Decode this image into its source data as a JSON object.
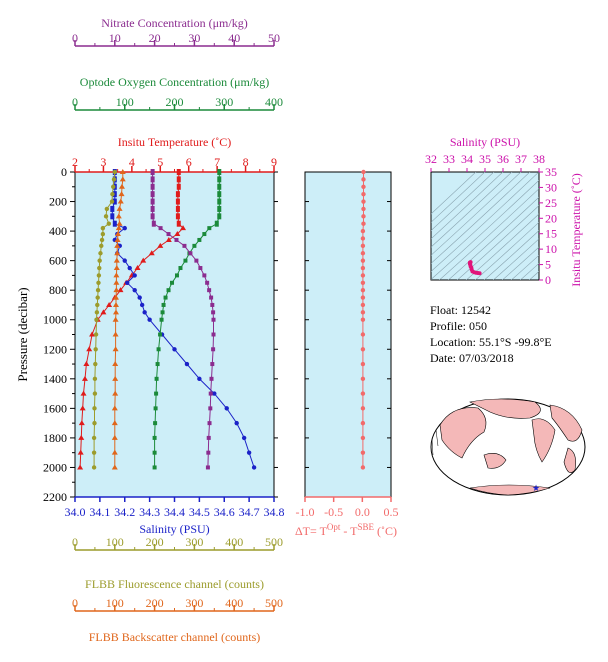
{
  "colors": {
    "nitrate": "#8b2c8f",
    "oxygen": "#1b8a3a",
    "temperature": "#e01b1b",
    "salinity": "#1b22c8",
    "fluorescence": "#9c9c2c",
    "backscatter": "#e0661b",
    "delta_t": "#f26a6a",
    "panel_bg": "#cdeef8",
    "ts_axis": "#cc11aa"
  },
  "info": {
    "float_label": "Float:",
    "float_value": "12542",
    "profile_label": "Profile:",
    "profile_value": "050",
    "location_label": "Location:",
    "location_value": "55.1°S  -99.8°E",
    "date_label": "Date:",
    "date_value": "07/03/2018"
  },
  "chart_data": [
    {
      "type": "line",
      "panel": "profile",
      "ylabel": "Pressure (decibar)",
      "ylim": [
        2200,
        0
      ],
      "y_ticks": [
        "0",
        "200",
        "400",
        "600",
        "800",
        "1000",
        "1200",
        "1400",
        "1600",
        "1800",
        "2000",
        "2200"
      ],
      "axes": {
        "nitrate": {
          "label": "Nitrate Concentration (μm/kg)",
          "ticks": [
            "0",
            "10",
            "20",
            "30",
            "40",
            "50"
          ],
          "range": [
            0,
            50
          ]
        },
        "oxygen": {
          "label": "Optode Oxygen Concentration (μm/kg)",
          "ticks": [
            "0",
            "100",
            "200",
            "300",
            "400"
          ],
          "range": [
            0,
            400
          ]
        },
        "temperature": {
          "label": "Insitu Temperature (˚C)",
          "ticks": [
            "2",
            "3",
            "4",
            "5",
            "6",
            "7",
            "8",
            "9"
          ],
          "range": [
            2,
            9
          ]
        },
        "salinity": {
          "label": "Salinity (PSU)",
          "ticks": [
            "34.0",
            "34.1",
            "34.2",
            "34.3",
            "34.4",
            "34.5",
            "34.6",
            "34.7",
            "34.8"
          ],
          "range": [
            34.0,
            34.8
          ]
        },
        "fluorescence": {
          "label": "FLBB Fluorescence channel (counts)",
          "ticks": [
            "0",
            "100",
            "200",
            "300",
            "400",
            "500"
          ],
          "range": [
            0,
            500
          ]
        },
        "backscatter": {
          "label": "FLBB Backscatter channel (counts)",
          "ticks": [
            "0",
            "100",
            "200",
            "300",
            "400",
            "500"
          ],
          "range": [
            0,
            500
          ]
        }
      },
      "series": [
        {
          "key": "temperature",
          "pressure": [
            0,
            50,
            100,
            150,
            200,
            250,
            300,
            350,
            380,
            420,
            460,
            500,
            550,
            600,
            650,
            700,
            750,
            800,
            850,
            900,
            950,
            1000,
            1100,
            1200,
            1300,
            1400,
            1500,
            1600,
            1700,
            1800,
            1900,
            2000
          ],
          "values": [
            5.65,
            5.65,
            5.65,
            5.62,
            5.62,
            5.62,
            5.62,
            5.65,
            5.8,
            5.6,
            5.3,
            5.0,
            4.7,
            4.4,
            4.2,
            4.0,
            3.8,
            3.6,
            3.4,
            3.2,
            3.0,
            2.8,
            2.6,
            2.5,
            2.4,
            2.35,
            2.3,
            2.27,
            2.24,
            2.22,
            2.2,
            2.18
          ]
        },
        {
          "key": "salinity",
          "pressure": [
            0,
            50,
            100,
            150,
            200,
            250,
            300,
            350,
            380,
            420,
            460,
            500,
            550,
            600,
            650,
            700,
            750,
            800,
            850,
            900,
            950,
            1000,
            1100,
            1200,
            1300,
            1400,
            1500,
            1600,
            1700,
            1800,
            1900,
            2000
          ],
          "values": [
            34.16,
            34.16,
            34.16,
            34.16,
            34.16,
            34.15,
            34.15,
            34.16,
            34.2,
            34.17,
            34.16,
            34.18,
            34.17,
            34.2,
            34.22,
            34.24,
            34.21,
            34.24,
            34.26,
            34.27,
            34.28,
            34.3,
            34.35,
            34.4,
            34.45,
            34.5,
            34.56,
            34.61,
            34.65,
            34.68,
            34.7,
            34.72
          ]
        },
        {
          "key": "oxygen",
          "pressure": [
            0,
            50,
            100,
            150,
            200,
            250,
            300,
            350,
            380,
            420,
            460,
            500,
            550,
            600,
            650,
            700,
            750,
            800,
            850,
            900,
            950,
            1000,
            1100,
            1200,
            1300,
            1400,
            1500,
            1600,
            1700,
            1800,
            1900,
            2000
          ],
          "values": [
            290,
            290,
            290,
            290,
            290,
            290,
            290,
            285,
            270,
            260,
            250,
            240,
            230,
            222,
            212,
            205,
            195,
            188,
            182,
            178,
            176,
            174,
            171,
            168,
            166,
            164,
            163,
            162,
            161,
            160,
            160,
            160
          ]
        },
        {
          "key": "nitrate",
          "pressure": [
            0,
            50,
            100,
            150,
            200,
            250,
            300,
            350,
            380,
            420,
            460,
            500,
            550,
            600,
            650,
            700,
            750,
            800,
            850,
            900,
            950,
            1000,
            1100,
            1200,
            1300,
            1400,
            1500,
            1600,
            1700,
            1800,
            1900,
            2000
          ],
          "values": [
            19.5,
            19.5,
            19.5,
            19.5,
            19.5,
            19.5,
            19.5,
            19.8,
            21.5,
            23.5,
            25.5,
            27.5,
            29,
            30.5,
            31.5,
            32.5,
            33.2,
            33.7,
            34.2,
            34.5,
            34.7,
            34.8,
            34.8,
            34.7,
            34.5,
            34.3,
            34.1,
            34.0,
            33.8,
            33.6,
            33.5,
            33.4
          ]
        },
        {
          "key": "fluorescence",
          "pressure": [
            0,
            50,
            100,
            150,
            200,
            250,
            300,
            350,
            380,
            420,
            460,
            500,
            550,
            600,
            650,
            700,
            750,
            800,
            850,
            900,
            950,
            1000,
            1100,
            1200,
            1300,
            1400,
            1500,
            1600,
            1700,
            1800,
            1900,
            2000
          ],
          "values": [
            100,
            98,
            96,
            94,
            93,
            80,
            78,
            85,
            70,
            70,
            68,
            66,
            64,
            62,
            61,
            60,
            59,
            58,
            57,
            56,
            55,
            54,
            53,
            52,
            51,
            50,
            50,
            49,
            49,
            48,
            48,
            48
          ]
        },
        {
          "key": "backscatter",
          "pressure": [
            0,
            50,
            100,
            150,
            200,
            250,
            300,
            350,
            380,
            420,
            460,
            500,
            550,
            600,
            650,
            700,
            750,
            800,
            850,
            900,
            950,
            1000,
            1100,
            1200,
            1300,
            1400,
            1500,
            1600,
            1700,
            1800,
            1900,
            2000
          ],
          "values": [
            120,
            120,
            118,
            117,
            115,
            112,
            110,
            112,
            110,
            108,
            107,
            106,
            106,
            105,
            105,
            104,
            104,
            104,
            103,
            103,
            103,
            102,
            102,
            102,
            101,
            101,
            101,
            100,
            100,
            100,
            100,
            100
          ]
        }
      ]
    },
    {
      "type": "line",
      "panel": "delta_t",
      "xlabel": "ΔT= T^Opt - T^SBE (˚C)",
      "xlabel_parts": {
        "main": "ΔT= T",
        "sup1": "Opt",
        "mid": " - T",
        "sup2": "SBE",
        "tail": " (˚C)"
      },
      "x_ticks": [
        "-1.0",
        "-0.5",
        "0.0",
        "0.5"
      ],
      "xlim": [
        -1.0,
        0.5
      ],
      "ylim": [
        2200,
        0
      ],
      "pressure": [
        0,
        50,
        100,
        150,
        200,
        250,
        300,
        350,
        400,
        450,
        500,
        550,
        600,
        650,
        700,
        750,
        800,
        850,
        900,
        950,
        1000,
        1100,
        1200,
        1300,
        1400,
        1500,
        1600,
        1700,
        1800,
        1900,
        2000
      ],
      "values": [
        0.02,
        0.02,
        0.02,
        0.02,
        0.02,
        0.02,
        0.02,
        0.02,
        0.01,
        0.01,
        0.01,
        0.01,
        0.01,
        0.01,
        0.01,
        0.01,
        0.01,
        0.01,
        0.01,
        0.01,
        0.01,
        0.01,
        0.01,
        0.01,
        0.01,
        0.01,
        0.01,
        0.01,
        0.01,
        0.01,
        0.01
      ]
    },
    {
      "type": "scatter",
      "panel": "ts_diagram",
      "title": "Salinity (PSU)",
      "ylabel": "Insitu Temperature (˚C)",
      "x_ticks": [
        "32",
        "33",
        "34",
        "35",
        "36",
        "37",
        "38"
      ],
      "xlim": [
        32,
        38
      ],
      "y_ticks": [
        "0",
        "5",
        "10",
        "15",
        "20",
        "25",
        "30",
        "35"
      ],
      "ylim": [
        0,
        35
      ],
      "x": [
        34.16,
        34.17,
        34.2,
        34.16,
        34.18,
        34.2,
        34.24,
        34.26,
        34.3,
        34.4,
        34.5,
        34.6,
        34.7
      ],
      "y": [
        5.65,
        5.62,
        5.8,
        5.3,
        5.0,
        4.4,
        4.0,
        3.4,
        2.8,
        2.5,
        2.35,
        2.27,
        2.18
      ]
    }
  ]
}
